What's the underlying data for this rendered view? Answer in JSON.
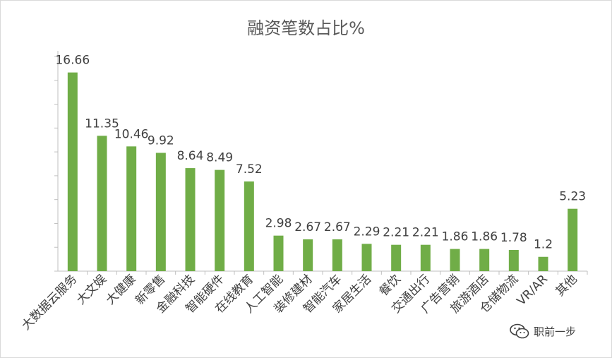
{
  "chart_data": {
    "type": "bar",
    "title": "融资笔数占比%",
    "xlabel": "",
    "ylabel": "",
    "categories": [
      "大数据云服务",
      "大文娱",
      "大健康",
      "新零售",
      "金融科技",
      "智能硬件",
      "在线教育",
      "人工智能",
      "装修建材",
      "智能汽车",
      "家居生活",
      "餐饮",
      "交通出行",
      "广告营销",
      "旅游酒店",
      "仓储物流",
      "VR/AR",
      "其他"
    ],
    "values": [
      16.66,
      11.35,
      10.46,
      9.92,
      8.64,
      8.49,
      7.52,
      2.98,
      2.67,
      2.67,
      2.29,
      2.21,
      2.21,
      1.86,
      1.86,
      1.78,
      1.2,
      5.23
    ],
    "value_labels": [
      "16.66",
      "11.35",
      "10.46",
      "9.92",
      "8.64",
      "8.49",
      "7.52",
      "2.98",
      "2.67",
      "2.67",
      "2.29",
      "2.21",
      "2.21",
      "1.86",
      "1.86",
      "1.78",
      "1.2",
      "5.23"
    ],
    "ylim": [
      0,
      18
    ],
    "grid": false,
    "legend": "none",
    "colors": {
      "bar": "#70ad47",
      "axis": "#bfbfbf",
      "text": "#404040",
      "title": "#595959"
    }
  },
  "watermark": {
    "text": "职前一步",
    "icon": "wechat-icon"
  }
}
